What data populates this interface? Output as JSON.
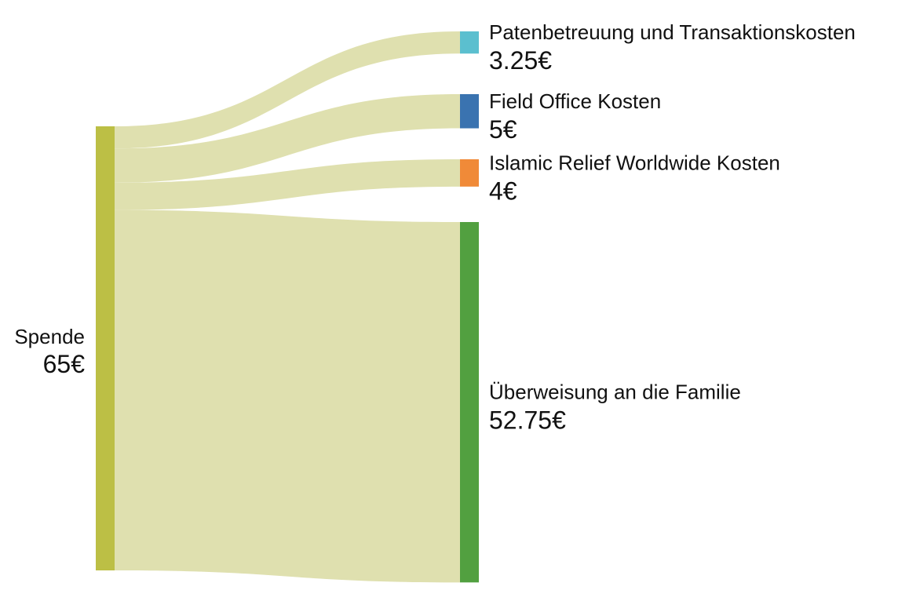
{
  "chart_data": {
    "type": "sankey",
    "colors": {
      "link": "#dfe0af",
      "source_node": "#bcbf45",
      "node_cyan": "#5bbfcf",
      "node_blue": "#3a73b0",
      "node_orange": "#f08a38",
      "node_green": "#52a040"
    },
    "source": {
      "name": "Spende",
      "value_label": "65€",
      "value": 65
    },
    "targets": [
      {
        "name": "Patenbetreuung und Transaktionskosten",
        "value_label": "3.25€",
        "value": 3.25
      },
      {
        "name": "Field Office Kosten",
        "value_label": "5€",
        "value": 5
      },
      {
        "name": "Islamic Relief Worldwide Kosten",
        "value_label": "4€",
        "value": 4
      },
      {
        "name": "Überweisung an die Familie",
        "value_label": "52.75€",
        "value": 52.75
      }
    ]
  }
}
